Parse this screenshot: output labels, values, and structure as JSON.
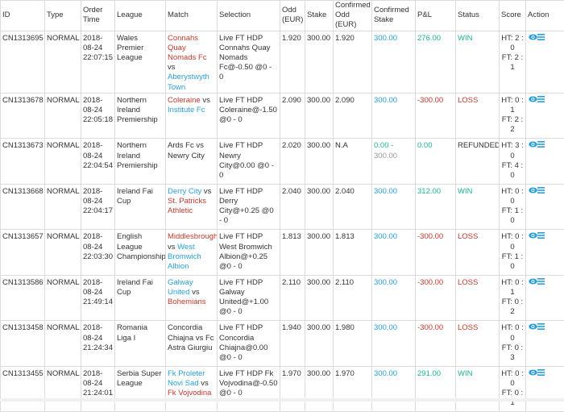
{
  "headers": {
    "id": "ID",
    "type": "Type",
    "order_time": "Order Time",
    "league": "League",
    "match": "Match",
    "selection": "Selection",
    "odd": "Odd (EUR)",
    "stake": "Stake",
    "confirmed_odd": "Confirmed Odd (EUR)",
    "confirmed_stake": "Confirmed Stake",
    "pl": "P&L",
    "status": "Status",
    "score": "Score",
    "action": "Action"
  },
  "rows": [
    {
      "id": "CN1313695",
      "type": "NORMAL",
      "date": "2018-08-24",
      "time": "22:07:15",
      "league": "Wales Premier League",
      "home": "Connahs Quay Nomads Fc",
      "vs": "vs",
      "away": "Aberystwyth Town",
      "home_color": "red",
      "away_color": "blue",
      "selection": "Live FT HDP Connahs Quay Nomads Fc@-0.50 @0 - 0",
      "odd": "1.920",
      "stake": "300.00",
      "conf_odd": "1.920",
      "conf_stake": "300.00",
      "conf_stake2": "",
      "pl": "276.00",
      "pl_color": "green",
      "status": "WIN",
      "score_ht": "HT: 2 : 0",
      "score_ft": "FT: 2 : 1"
    },
    {
      "id": "CN1313678",
      "type": "NORMAL",
      "date": "2018-08-24",
      "time": "22:05:18",
      "league": "Northern Ireland Premiership",
      "home": "Coleraine",
      "vs": "vs",
      "away": "Institute Fc",
      "home_color": "red",
      "away_color": "blue",
      "selection": "Live FT HDP Coleraine@-1.50 @0 - 0",
      "odd": "2.090",
      "stake": "300.00",
      "conf_odd": "2.090",
      "conf_stake": "300.00",
      "conf_stake2": "",
      "pl": "-300.00",
      "pl_color": "red",
      "status": "LOSS",
      "score_ht": "HT: 0 : 1",
      "score_ft": "FT: 2 : 2"
    },
    {
      "id": "CN1313673",
      "type": "NORMAL",
      "date": "2018-08-24",
      "time": "22:04:54",
      "league": "Northern Ireland Premiership",
      "home": "Ards Fc",
      "vs": "vs",
      "away": "Newry City",
      "home_color": "plain",
      "away_color": "plain",
      "selection": "Live FT HDP Newry City@0.00 @0 - 0",
      "odd": "2.020",
      "stake": "300.00",
      "conf_odd": "N.A",
      "conf_stake": "0.00 -",
      "conf_stake2": "300.00",
      "pl": "0.00",
      "pl_color": "green",
      "status": "REFUNDED",
      "score_ht": "HT: 3 : 0",
      "score_ft": "FT: 4 : 0"
    },
    {
      "id": "CN1313668",
      "type": "NORMAL",
      "date": "2018-08-24",
      "time": "22:04:17",
      "league": "Ireland Fai Cup",
      "home": "Derry City",
      "vs": "vs",
      "away": "St. Patricks Athletic",
      "home_color": "blue",
      "away_color": "red",
      "selection": "Live FT HDP Derry City@+0.25 @0 - 0",
      "odd": "2.040",
      "stake": "300.00",
      "conf_odd": "2.040",
      "conf_stake": "300.00",
      "conf_stake2": "",
      "pl": "312.00",
      "pl_color": "green",
      "status": "WIN",
      "score_ht": "HT: 0 : 0",
      "score_ft": "FT: 1 : 0"
    },
    {
      "id": "CN1313657",
      "type": "NORMAL",
      "date": "2018-08-24",
      "time": "22:03:30",
      "league": "English League Championship",
      "home": "Middlesbrough",
      "vs": "vs",
      "away": "West Bromwich Albion",
      "home_color": "red",
      "away_color": "blue",
      "selection": "Live FT HDP West Bromwich Albion@+0.25 @0 - 0",
      "odd": "1.813",
      "stake": "300.00",
      "conf_odd": "1.813",
      "conf_stake": "300.00",
      "conf_stake2": "",
      "pl": "-300.00",
      "pl_color": "red",
      "status": "LOSS",
      "score_ht": "HT: 0 : 0",
      "score_ft": "FT: 1 : 0"
    },
    {
      "id": "CN1313586",
      "type": "NORMAL",
      "date": "2018-08-24",
      "time": "21:49:14",
      "league": "Ireland Fai Cup",
      "home": "Galway United",
      "vs": "vs",
      "away": "Bohemians",
      "home_color": "blue",
      "away_color": "red",
      "selection": "Live FT HDP Galway United@+1.00 @0 - 0",
      "odd": "2.110",
      "stake": "300.00",
      "conf_odd": "2.110",
      "conf_stake": "300.00",
      "conf_stake2": "",
      "pl": "-300.00",
      "pl_color": "red",
      "status": "LOSS",
      "score_ht": "HT: 0 : 1",
      "score_ft": "FT: 0 : 2"
    },
    {
      "id": "CN1313458",
      "type": "NORMAL",
      "date": "2018-08-24",
      "time": "21:24:34",
      "league": "Romania Liga I",
      "home": "Concordia Chiajna",
      "vs": "vs",
      "away": "Fc Astra Giurgiu",
      "home_color": "plain",
      "away_color": "plain",
      "selection": "Live FT HDP Concordia Chiajna@0.00 @0 - 0",
      "odd": "1.940",
      "stake": "300.00",
      "conf_odd": "1.980",
      "conf_stake": "300.00",
      "conf_stake2": "",
      "pl": "-300.00",
      "pl_color": "red",
      "status": "LOSS",
      "score_ht": "HT: 0 : 0",
      "score_ft": "FT: 0 : 3"
    },
    {
      "id": "CN1313455",
      "type": "NORMAL",
      "date": "2018-08-24",
      "time": "21:24:01",
      "league": "Serbia Super League",
      "home": "Fk Proleter Novi Sad",
      "vs": "vs",
      "away": "Fk Vojvodina",
      "home_color": "blue",
      "away_color": "red",
      "selection": "Live FT HDP Fk Vojvodina@-0.50 @0 - 0",
      "odd": "1.970",
      "stake": "300.00",
      "conf_odd": "1.970",
      "conf_stake": "300.00",
      "conf_stake2": "",
      "pl": "291.00",
      "pl_color": "green",
      "status": "WIN",
      "score_ht": "HT: 0 : 0",
      "score_ft": "FT: 0 : 1"
    }
  ],
  "icons": {
    "view": "eye-icon",
    "list": "list-icon"
  },
  "colors": {
    "red": "#c0392b",
    "blue": "#2a9fd6",
    "green": "#1bb394"
  }
}
